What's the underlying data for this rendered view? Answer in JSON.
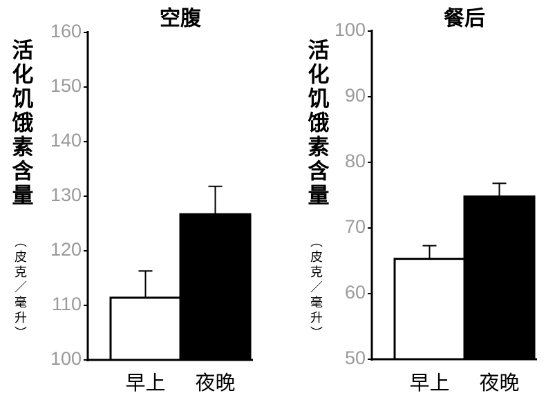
{
  "chart_data": [
    {
      "type": "bar",
      "title": "空腹",
      "ylabel": "活化饥饿素含量",
      "ylabel_unit": "（皮克／毫升）",
      "categories": [
        "早上",
        "夜晚"
      ],
      "values": [
        111.4,
        126.7
      ],
      "errors": [
        4.9,
        5.1
      ],
      "colors": [
        "#ffffff",
        "#000000"
      ],
      "ylim": [
        100,
        160
      ],
      "yticks": [
        100,
        110,
        120,
        130,
        140,
        150,
        160
      ]
    },
    {
      "type": "bar",
      "title": "餐后",
      "ylabel": "活化饥饿素含量",
      "ylabel_unit": "（皮克／毫升）",
      "categories": [
        "早上",
        "夜晚"
      ],
      "values": [
        65.3,
        74.8
      ],
      "errors": [
        2.0,
        2.0
      ],
      "colors": [
        "#ffffff",
        "#000000"
      ],
      "ylim": [
        50,
        100
      ],
      "yticks": [
        50,
        60,
        70,
        80,
        90,
        100
      ]
    }
  ]
}
